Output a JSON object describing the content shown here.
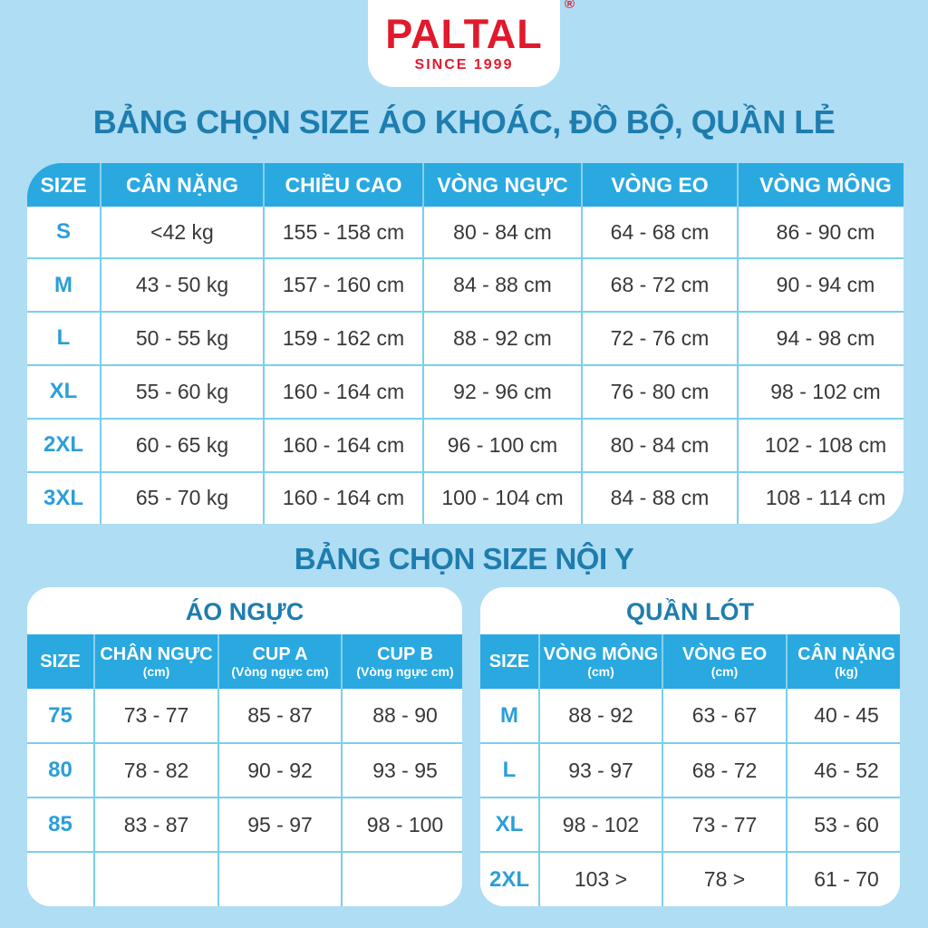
{
  "logo": {
    "brand": "PALTAL",
    "registered_mark": "®",
    "tagline": "SINCE 1999"
  },
  "colors": {
    "background": "#aeddf4",
    "brand_red": "#e2192c",
    "title_blue": "#1e7dae",
    "header_blue": "#29a9e0",
    "size_text_blue": "#2b9fd8",
    "cell_border_cyan": "#79cfef",
    "cell_text": "#383838"
  },
  "sections": {
    "outerwear": {
      "title": "BẢNG CHỌN SIZE ÁO KHOÁC, ĐỒ BỘ, QUẦN LẺ",
      "table": {
        "headers": [
          "SIZE",
          "CÂN NẶNG",
          "CHIỀU CAO",
          "VÒNG NGỰC",
          "VÒNG EO",
          "VÒNG MÔNG"
        ],
        "rows": [
          [
            "S",
            "<42 kg",
            "155 - 158 cm",
            "80 - 84 cm",
            "64 - 68 cm",
            "86 - 90 cm"
          ],
          [
            "M",
            "43 - 50 kg",
            "157 - 160 cm",
            "84 - 88 cm",
            "68 - 72 cm",
            "90 - 94 cm"
          ],
          [
            "L",
            "50 - 55 kg",
            "159 - 162 cm",
            "88 - 92 cm",
            "72 - 76 cm",
            "94 - 98 cm"
          ],
          [
            "XL",
            "55 - 60 kg",
            "160 - 164 cm",
            "92 - 96 cm",
            "76 - 80 cm",
            "98 - 102 cm"
          ],
          [
            "2XL",
            "60 - 65 kg",
            "160 - 164 cm",
            "96 - 100 cm",
            "80 - 84 cm",
            "102 - 108 cm"
          ],
          [
            "3XL",
            "65 - 70 kg",
            "160 - 164 cm",
            "100 - 104 cm",
            "84 - 88 cm",
            "108 - 114 cm"
          ]
        ]
      }
    },
    "underwear": {
      "title": "BẢNG CHỌN SIZE NỘI Y",
      "bra_table": {
        "title": "ÁO NGỰC",
        "headers": [
          {
            "label": "SIZE",
            "sub": ""
          },
          {
            "label": "CHÂN NGỰC",
            "sub": "(cm)"
          },
          {
            "label": "CUP A",
            "sub": "(Vòng ngực cm)"
          },
          {
            "label": "CUP B",
            "sub": "(Vòng ngực cm)"
          }
        ],
        "rows": [
          [
            "75",
            "73 - 77",
            "85 - 87",
            "88 - 90"
          ],
          [
            "80",
            "78 - 82",
            "90 - 92",
            "93 - 95"
          ],
          [
            "85",
            "83 - 87",
            "95 - 97",
            "98 - 100"
          ],
          [
            "",
            "",
            "",
            ""
          ]
        ]
      },
      "panty_table": {
        "title": "QUẦN LÓT",
        "headers": [
          {
            "label": "SIZE",
            "sub": ""
          },
          {
            "label": "VÒNG MÔNG",
            "sub": "(cm)"
          },
          {
            "label": "VÒNG EO",
            "sub": "(cm)"
          },
          {
            "label": "CÂN NẶNG",
            "sub": "(kg)"
          }
        ],
        "rows": [
          [
            "M",
            "88 - 92",
            "63 - 67",
            "40 - 45"
          ],
          [
            "L",
            "93 - 97",
            "68 - 72",
            "46 - 52"
          ],
          [
            "XL",
            "98 - 102",
            "73 - 77",
            "53 - 60"
          ],
          [
            "2XL",
            "103 >",
            "78 >",
            "61 - 70"
          ]
        ]
      }
    }
  }
}
